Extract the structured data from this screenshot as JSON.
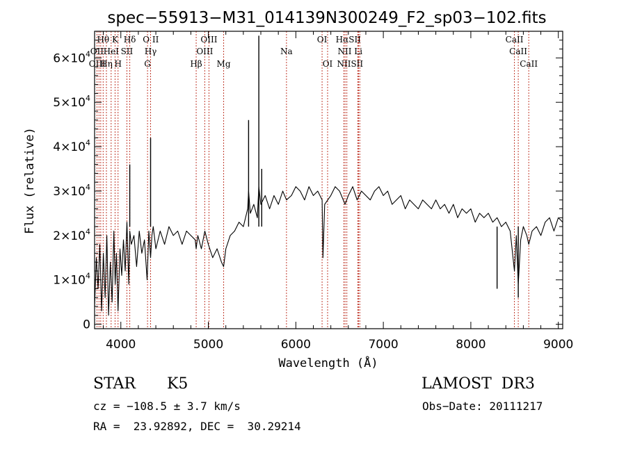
{
  "chart_data": {
    "type": "line",
    "title": "spec−55913−M31_014139N300249_F2_sp03−102.fits",
    "xlabel": "Wavelength (Å)",
    "ylabel": "Flux (relative)",
    "xlim": [
      3700,
      9050
    ],
    "ylim": [
      -1000,
      66000
    ],
    "x_ticks": [
      4000,
      5000,
      6000,
      7000,
      8000,
      9000
    ],
    "x_tick_labels": [
      "4000",
      "5000",
      "6000",
      "7000",
      "8000",
      "9000"
    ],
    "y_ticks": [
      0,
      10000,
      20000,
      30000,
      40000,
      50000,
      60000
    ],
    "y_tick_labels": [
      {
        "mant": "0",
        "exp": ""
      },
      {
        "mant": "1×10",
        "exp": "4"
      },
      {
        "mant": "2×10",
        "exp": "4"
      },
      {
        "mant": "3×10",
        "exp": "4"
      },
      {
        "mant": "4×10",
        "exp": "4"
      },
      {
        "mant": "5×10",
        "exp": "4"
      },
      {
        "mant": "6×10",
        "exp": "4"
      }
    ],
    "grid": false,
    "series": [
      {
        "color": "#000000",
        "x": [
          3700,
          3720,
          3740,
          3760,
          3780,
          3800,
          3820,
          3840,
          3860,
          3880,
          3900,
          3920,
          3935,
          3950,
          3968,
          3990,
          4010,
          4030,
          4050,
          4070,
          4090,
          4102,
          4120,
          4150,
          4180,
          4210,
          4240,
          4270,
          4300,
          4320,
          4340,
          4355,
          4370,
          4400,
          4450,
          4500,
          4550,
          4600,
          4650,
          4700,
          4750,
          4800,
          4850,
          4861,
          4880,
          4920,
          4960,
          5000,
          5050,
          5100,
          5150,
          5175,
          5200,
          5250,
          5300,
          5350,
          5400,
          5450,
          5460,
          5480,
          5520,
          5560,
          5577,
          5600,
          5650,
          5700,
          5750,
          5800,
          5850,
          5893,
          5950,
          6000,
          6050,
          6100,
          6150,
          6200,
          6250,
          6300,
          6310,
          6330,
          6400,
          6450,
          6500,
          6563,
          6600,
          6650,
          6700,
          6750,
          6800,
          6850,
          6900,
          6950,
          7000,
          7050,
          7100,
          7150,
          7200,
          7250,
          7300,
          7350,
          7400,
          7450,
          7500,
          7550,
          7600,
          7650,
          7700,
          7750,
          7800,
          7850,
          7900,
          7950,
          8000,
          8050,
          8100,
          8150,
          8200,
          8250,
          8300,
          8350,
          8400,
          8450,
          8498,
          8520,
          8542,
          8570,
          8600,
          8640,
          8662,
          8700,
          8750,
          8800,
          8850,
          8900,
          8950,
          9000,
          9050
        ],
        "y": [
          4000,
          15000,
          8000,
          18000,
          3000,
          16000,
          6000,
          20000,
          2000,
          14000,
          5000,
          21000,
          9000,
          16000,
          3000,
          17000,
          11000,
          19000,
          12000,
          23000,
          9000,
          21000,
          18000,
          20000,
          13000,
          21000,
          16000,
          19000,
          10000,
          21000,
          15000,
          20000,
          22000,
          17000,
          21000,
          18000,
          22000,
          20000,
          21000,
          18000,
          21000,
          20000,
          19000,
          17000,
          20000,
          17000,
          21000,
          18000,
          15000,
          17000,
          14000,
          13000,
          17000,
          20000,
          21000,
          23000,
          22000,
          26000,
          30000,
          25000,
          27000,
          24000,
          31000,
          27000,
          29000,
          26000,
          29000,
          27000,
          30000,
          28000,
          29000,
          31000,
          30000,
          28000,
          31000,
          29000,
          30000,
          28000,
          15000,
          27000,
          29000,
          31000,
          30000,
          27000,
          29000,
          31000,
          28000,
          30000,
          29000,
          28000,
          30000,
          31000,
          29000,
          30000,
          27000,
          28000,
          29000,
          26000,
          28000,
          27000,
          26000,
          28000,
          27000,
          26000,
          28000,
          26000,
          27000,
          25000,
          27000,
          24000,
          26000,
          25000,
          26000,
          23000,
          25000,
          24000,
          25000,
          23000,
          24000,
          22000,
          23000,
          21000,
          12000,
          20000,
          9000,
          19000,
          22000,
          20000,
          18000,
          21000,
          22000,
          20000,
          23000,
          24000,
          21000,
          24000,
          23000
        ]
      }
    ],
    "spikes": [
      {
        "x": 4102,
        "y": 36000
      },
      {
        "x": 4340,
        "y": 42000
      },
      {
        "x": 5460,
        "y": 46000
      },
      {
        "x": 5577,
        "y": 65000
      },
      {
        "x": 5610,
        "y": 35000
      },
      {
        "x": 8300,
        "y": 8000
      },
      {
        "x": 8542,
        "y": 6000
      }
    ],
    "line_labels": [
      {
        "text": "Hθ",
        "x": 3798,
        "row": 1
      },
      {
        "text": "K",
        "x": 3934,
        "row": 1
      },
      {
        "text": "Hδ",
        "x": 4102,
        "row": 1
      },
      {
        "text": "O II",
        "x": 4342,
        "row": 1
      },
      {
        "text": "OIII",
        "x": 5007,
        "row": 1
      },
      {
        "text": "Na",
        "x": 5893,
        "row": 2
      },
      {
        "text": "OI",
        "x": 6300,
        "row": 1
      },
      {
        "text": "HαSII",
        "x": 6600,
        "row": 1
      },
      {
        "text": "CaII",
        "x": 8498,
        "row": 1
      },
      {
        "text": "OII",
        "x": 3727,
        "row": 2
      },
      {
        "text": "HeI",
        "x": 3889,
        "row": 2
      },
      {
        "text": "SII",
        "x": 4069,
        "row": 2
      },
      {
        "text": "Hγ",
        "x": 4340,
        "row": 2
      },
      {
        "text": "OIII",
        "x": 4959,
        "row": 2
      },
      {
        "text": "NII Li",
        "x": 6620,
        "row": 2
      },
      {
        "text": "CaII",
        "x": 8542,
        "row": 2
      },
      {
        "text": "OIII",
        "x": 3730,
        "row": 3
      },
      {
        "text": "Hη",
        "x": 3835,
        "row": 3
      },
      {
        "text": "H",
        "x": 3968,
        "row": 3
      },
      {
        "text": "G",
        "x": 4305,
        "row": 3
      },
      {
        "text": "Hβ",
        "x": 4861,
        "row": 3
      },
      {
        "text": "Mg",
        "x": 5175,
        "row": 3
      },
      {
        "text": "OI",
        "x": 6363,
        "row": 3
      },
      {
        "text": "NIISII",
        "x": 6620,
        "row": 3
      },
      {
        "text": "CaII",
        "x": 8662,
        "row": 3
      }
    ],
    "marker_lines": [
      3727,
      3750,
      3770,
      3798,
      3835,
      3889,
      3934,
      3968,
      4069,
      4102,
      4305,
      4340,
      4861,
      4959,
      5007,
      5175,
      5893,
      6300,
      6363,
      6548,
      6563,
      6583,
      6708,
      6717,
      6731,
      8498,
      8542,
      8662
    ]
  },
  "info": {
    "class": "STAR",
    "subclass": "K5",
    "survey": "LAMOST  DR3",
    "cz": "cz = −108.5 ± 3.7 km/s",
    "obs_date": "Obs−Date: 20111217",
    "radec": "RA =  23.92892, DEC =  30.29214"
  }
}
